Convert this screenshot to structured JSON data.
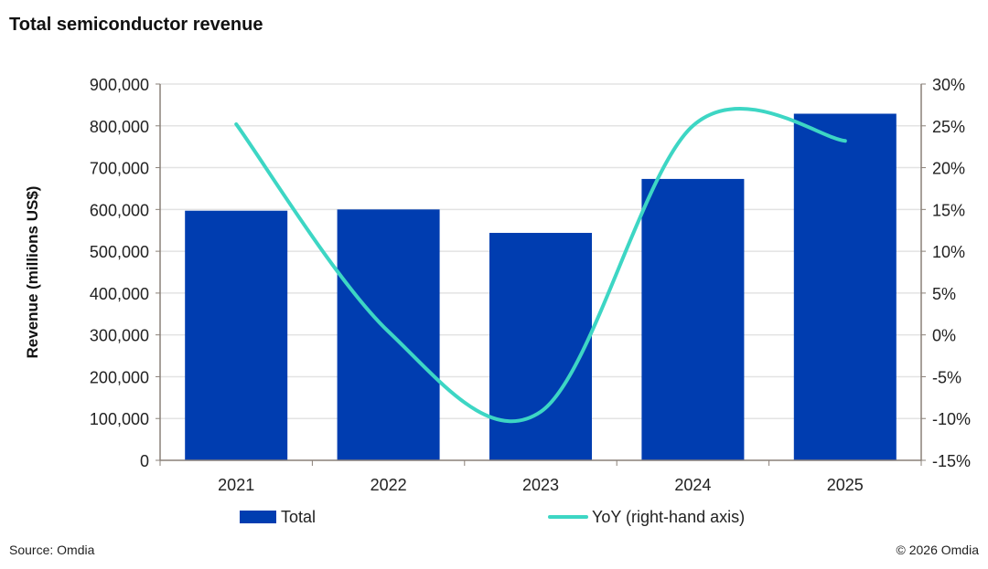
{
  "title": "Total semiconductor revenue",
  "source": "Source: Omdia",
  "copyright": "© 2026 Omdia",
  "chart_data": {
    "type": "bar+line",
    "title": "Total semiconductor revenue",
    "categories": [
      "2021",
      "2022",
      "2023",
      "2024",
      "2025"
    ],
    "ylabel": "Revenue (millions US$)",
    "ylim": [
      0,
      900000
    ],
    "yticks": [
      "0",
      "100,000",
      "200,000",
      "300,000",
      "400,000",
      "500,000",
      "600,000",
      "700,000",
      "800,000",
      "900,000"
    ],
    "y2lim": [
      -15,
      30
    ],
    "y2ticks": [
      "-15%",
      "-10%",
      "-5%",
      "0%",
      "5%",
      "10%",
      "15%",
      "20%",
      "25%",
      "30%"
    ],
    "grid": true,
    "legend_position": "bottom",
    "series": [
      {
        "name": "Total",
        "type": "bar",
        "axis": "left",
        "color": "#003DB0",
        "values": [
          597000,
          600000,
          544000,
          673000,
          829000
        ]
      },
      {
        "name": "YoY (right-hand axis)",
        "type": "line",
        "smooth": true,
        "axis": "right",
        "color": "#3DD6C4",
        "values": [
          25.2,
          0.4,
          -9.2,
          25.0,
          23.2
        ]
      }
    ]
  }
}
